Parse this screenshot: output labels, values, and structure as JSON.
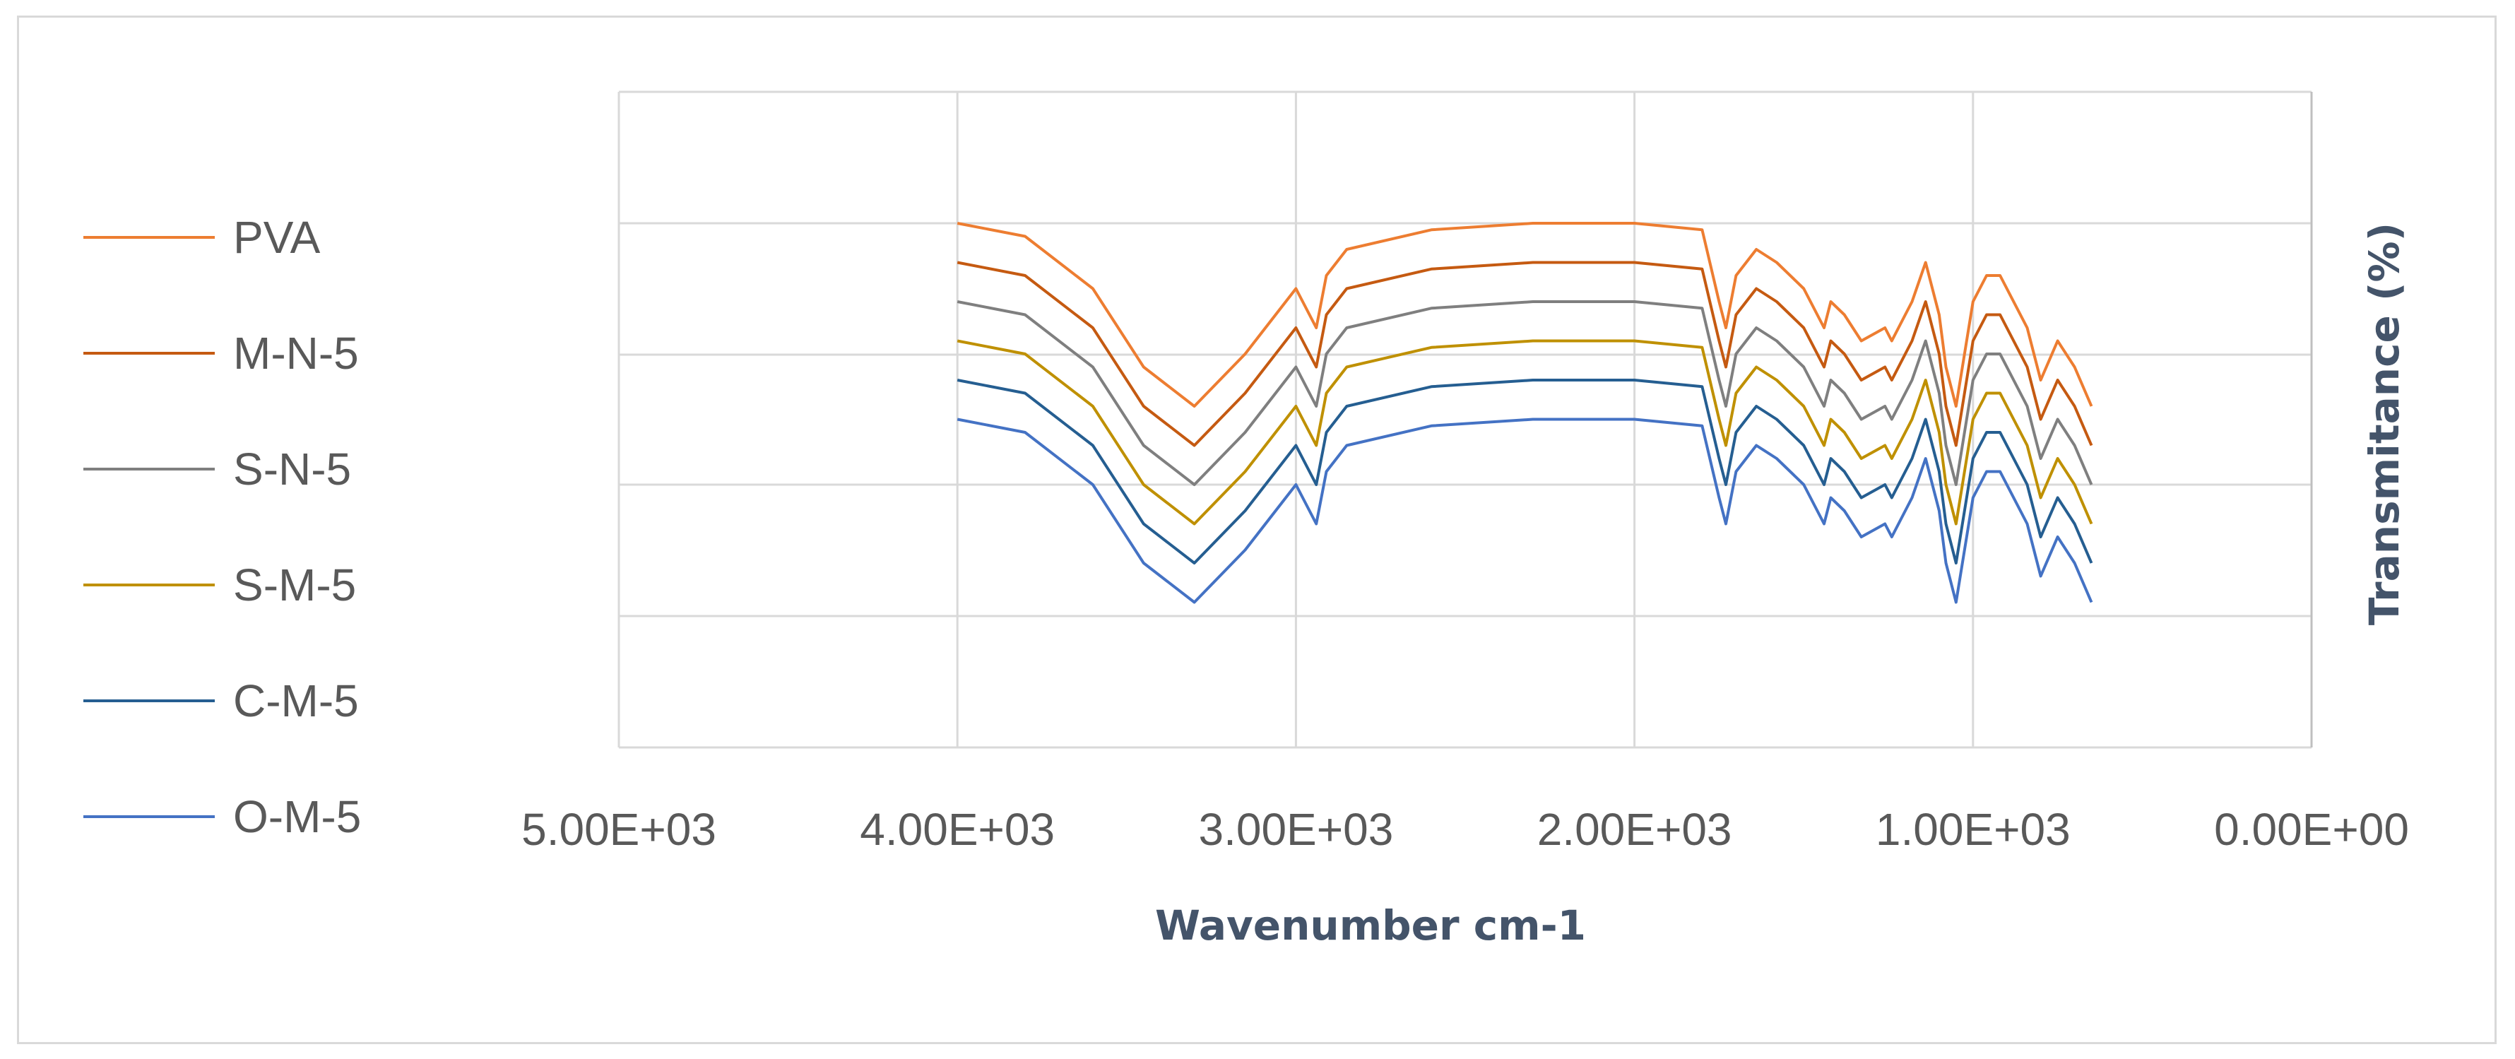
{
  "chart_data": {
    "type": "line",
    "title": "",
    "xlabel": "Wavenumber cm-1",
    "ylabel": "Transmitance (%)",
    "x_reversed": true,
    "xlim": [
      5000,
      0
    ],
    "x_ticks": [
      5000,
      4000,
      3000,
      2000,
      1000,
      0
    ],
    "x_tick_labels": [
      "5.00E+03",
      "4.00E+03",
      "3.00E+03",
      "2.00E+03",
      "1.00E+03",
      "0.00E+00"
    ],
    "y_axis_labels_shown": false,
    "grid": true,
    "legend_position": "left",
    "x": [
      4000,
      3800,
      3600,
      3450,
      3300,
      3150,
      3000,
      2940,
      2910,
      2850,
      2600,
      2300,
      2000,
      1800,
      1750,
      1730,
      1700,
      1640,
      1580,
      1500,
      1440,
      1420,
      1380,
      1330,
      1260,
      1240,
      1180,
      1140,
      1100,
      1080,
      1050,
      1000,
      960,
      920,
      880,
      840,
      800,
      750,
      700,
      650
    ],
    "series": [
      {
        "name": "PVA",
        "color": "#ed7d31",
        "values": [
          100,
          99,
          95,
          89,
          86,
          90,
          95,
          92,
          96,
          98,
          99.5,
          100,
          100,
          99.5,
          94,
          92,
          96,
          98,
          97,
          95,
          92,
          94,
          93,
          91,
          92,
          91,
          94,
          97,
          93,
          89,
          86,
          94,
          96,
          96,
          94,
          92,
          88,
          91,
          89,
          86
        ]
      },
      {
        "name": "M-N-5",
        "color": "#c55a11",
        "values": [
          97,
          96,
          92,
          86,
          83,
          87,
          92,
          89,
          93,
          95,
          96.5,
          97,
          97,
          96.5,
          91,
          89,
          93,
          95,
          94,
          92,
          89,
          91,
          90,
          88,
          89,
          88,
          91,
          94,
          90,
          86,
          83,
          91,
          93,
          93,
          91,
          89,
          85,
          88,
          86,
          83
        ]
      },
      {
        "name": "S-N-5",
        "color": "#7f7f7f",
        "values": [
          94,
          93,
          89,
          83,
          80,
          84,
          89,
          86,
          90,
          92,
          93.5,
          94,
          94,
          93.5,
          88,
          86,
          90,
          92,
          91,
          89,
          86,
          88,
          87,
          85,
          86,
          85,
          88,
          91,
          87,
          83,
          80,
          88,
          90,
          90,
          88,
          86,
          82,
          85,
          83,
          80
        ]
      },
      {
        "name": "S-M-5",
        "color": "#bf9000",
        "values": [
          91,
          90,
          86,
          80,
          77,
          81,
          86,
          83,
          87,
          89,
          90.5,
          91,
          91,
          90.5,
          85,
          83,
          87,
          89,
          88,
          86,
          83,
          85,
          84,
          82,
          83,
          82,
          85,
          88,
          84,
          80,
          77,
          85,
          87,
          87,
          85,
          83,
          79,
          82,
          80,
          77
        ]
      },
      {
        "name": "C-M-5",
        "color": "#255e91",
        "values": [
          88,
          87,
          83,
          77,
          74,
          78,
          83,
          80,
          84,
          86,
          87.5,
          88,
          88,
          87.5,
          82,
          80,
          84,
          86,
          85,
          83,
          80,
          82,
          81,
          79,
          80,
          79,
          82,
          85,
          81,
          77,
          74,
          82,
          84,
          84,
          82,
          80,
          76,
          79,
          77,
          74
        ]
      },
      {
        "name": "O-M-5",
        "color": "#4472c4",
        "values": [
          85,
          84,
          80,
          74,
          71,
          75,
          80,
          77,
          81,
          83,
          84.5,
          85,
          85,
          84.5,
          79,
          77,
          81,
          83,
          82,
          80,
          77,
          79,
          78,
          76,
          77,
          76,
          79,
          82,
          78,
          74,
          71,
          79,
          81,
          81,
          79,
          77,
          73,
          76,
          74,
          71
        ]
      }
    ]
  }
}
